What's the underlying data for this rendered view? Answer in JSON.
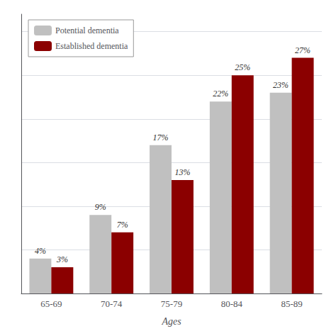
{
  "chart_data": {
    "type": "bar",
    "xlabel": "Ages",
    "categories": [
      "65-69",
      "70-74",
      "75-79",
      "80-84",
      "85-89"
    ],
    "series": [
      {
        "name": "Potential dementia",
        "color": "#C0C0C0",
        "values": [
          4,
          9,
          17,
          22,
          23
        ],
        "value_labels": [
          "4%",
          "9%",
          "17%",
          "22%",
          "23%"
        ]
      },
      {
        "name": "Established dementia",
        "color": "#8B0000",
        "values": [
          3,
          7,
          13,
          25,
          27
        ],
        "value_labels": [
          "3%",
          "7%",
          "13%",
          "25%",
          "27%"
        ]
      }
    ],
    "ylim": [
      0,
      32
    ],
    "yticks": [
      0,
      5,
      10,
      15,
      20,
      25,
      30
    ],
    "grid": true,
    "legend": "upper left",
    "data_labels": true,
    "tick_labels": "x"
  }
}
